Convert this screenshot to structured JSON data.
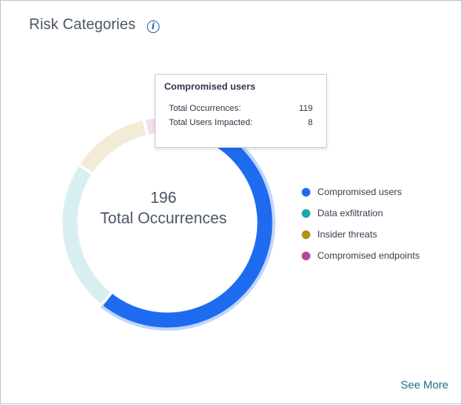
{
  "card": {
    "title": "Risk Categories",
    "info_icon": "info-icon",
    "see_more": "See More"
  },
  "center": {
    "value": "196",
    "label": "Total Occurrences"
  },
  "tooltip": {
    "title": "Compromised users",
    "rows": [
      {
        "label": "Total Occurrences:",
        "value": "119"
      },
      {
        "label": "Total Users Impacted:",
        "value": "8"
      }
    ]
  },
  "legend": [
    {
      "label": "Compromised users",
      "color": "#1f6bf0"
    },
    {
      "label": "Data exfiltration",
      "color": "#1ea5b3"
    },
    {
      "label": "Insider threats",
      "color": "#b59119"
    },
    {
      "label": "Compromised endpoints",
      "color": "#b6479e"
    }
  ],
  "chart_data": {
    "type": "pie",
    "donut": true,
    "title": "Risk Categories",
    "total": 196,
    "total_label": "Total Occurrences",
    "highlighted": "Compromised users",
    "categories": [
      "Compromised users",
      "Data exfiltration",
      "Insider threats",
      "Compromised endpoints"
    ],
    "values": [
      119,
      46,
      24,
      7
    ],
    "colors": [
      "#1f6bf0",
      "#1ea5b3",
      "#b59119",
      "#b6479e"
    ],
    "legend_position": "right"
  }
}
